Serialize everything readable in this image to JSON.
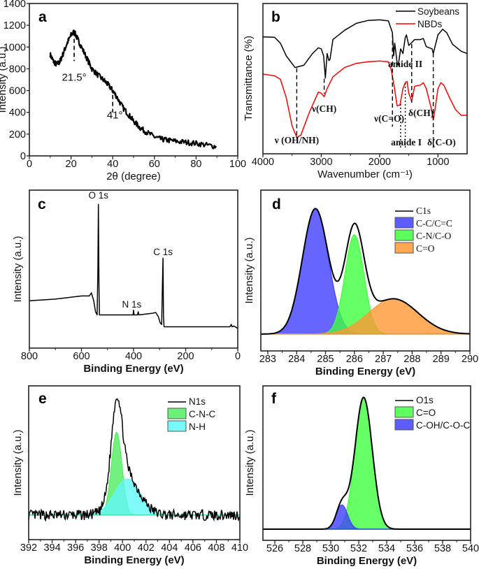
{
  "chart_data": [
    {
      "panel": "a",
      "type": "line",
      "xlabel": "2θ (degree)",
      "ylabel": "Intensity (a.u.)",
      "xlim": [
        0,
        100
      ],
      "ylim": [
        0,
        1400
      ],
      "xticks": [
        "0",
        "20",
        "40",
        "60",
        "80",
        "100"
      ],
      "yticks": [
        "0",
        "200",
        "400",
        "600",
        "800",
        "1000",
        "1200",
        "1400"
      ],
      "series": [
        {
          "color": "#000000",
          "x": [
            10,
            11.5,
            13,
            14.5,
            16,
            18,
            20,
            21.5,
            23,
            25,
            28,
            30,
            33,
            36,
            38,
            40,
            42,
            45,
            48,
            50,
            53,
            56,
            60,
            63,
            66,
            70,
            75,
            80,
            85,
            90
          ],
          "y": [
            930,
            870,
            840,
            860,
            930,
            1030,
            1110,
            1140,
            1080,
            1000,
            880,
            800,
            740,
            690,
            650,
            600,
            540,
            440,
            370,
            320,
            260,
            220,
            175,
            155,
            145,
            135,
            125,
            115,
            100,
            85
          ]
        }
      ],
      "annotations": [
        {
          "text": "21.5°",
          "x": 21.5
        },
        {
          "text": "41°",
          "x": 41
        }
      ]
    },
    {
      "panel": "b",
      "type": "line",
      "xlabel": "Wavenumber (cm⁻¹)",
      "ylabel": "Transmittance (%)",
      "xlim": [
        4000,
        500
      ],
      "ylim": [
        0,
        100
      ],
      "xticks": [
        "4000",
        "3000",
        "2000",
        "1000"
      ],
      "legend": "top-right",
      "series": [
        {
          "name": "Soybeans",
          "color": "#000000",
          "x": [
            4000,
            3800,
            3700,
            3600,
            3450,
            3300,
            3150,
            3050,
            3000,
            2960,
            2930,
            2900,
            2870,
            2850,
            2800,
            2600,
            2400,
            2200,
            2000,
            1850,
            1780,
            1760,
            1740,
            1700,
            1680,
            1640,
            1600,
            1560,
            1540,
            1500,
            1460,
            1400,
            1300,
            1250,
            1200,
            1100,
            1080,
            1000,
            920,
            850,
            750,
            600,
            500
          ],
          "y": [
            77.8,
            77.5,
            73.6,
            65.1,
            57.4,
            58.9,
            66.7,
            70.5,
            69.8,
            65.1,
            50.4,
            66.7,
            62.0,
            62.8,
            76.0,
            82.2,
            86.8,
            88.7,
            89.1,
            88.4,
            80.6,
            65.1,
            73.6,
            60.5,
            58.9,
            69.8,
            66.7,
            77.5,
            79.1,
            72.1,
            73.6,
            76.0,
            76.0,
            76.7,
            71.3,
            69.8,
            66.7,
            79.1,
            82.9,
            80.6,
            72.9,
            68.2,
            66.7
          ]
        },
        {
          "name": "NBDs",
          "color": "#ff0000",
          "x": [
            4000,
            3800,
            3700,
            3600,
            3500,
            3420,
            3350,
            3200,
            3050,
            3000,
            2950,
            2900,
            2800,
            2600,
            2400,
            2200,
            2000,
            1850,
            1800,
            1750,
            1700,
            1650,
            1600,
            1560,
            1530,
            1500,
            1450,
            1400,
            1300,
            1250,
            1200,
            1120,
            1080,
            1050,
            1000,
            950,
            900,
            800,
            700,
            600,
            500
          ],
          "y": [
            53.0,
            51.9,
            49.6,
            37.2,
            18.6,
            10.9,
            12.4,
            27.9,
            41.1,
            40.3,
            38.0,
            43.4,
            51.2,
            57.4,
            60.2,
            61.2,
            61.7,
            61.2,
            55.8,
            45.0,
            31.8,
            32.6,
            43.4,
            47.3,
            48.1,
            40.3,
            34.9,
            45.0,
            45.7,
            47.3,
            43.4,
            31.0,
            22.5,
            29.5,
            43.4,
            47.3,
            45.7,
            37.2,
            29.5,
            25.6,
            25.6
          ]
        }
      ],
      "annotations": [
        {
          "text": "ν (OH/NH)",
          "x": 3420
        },
        {
          "text": "ν(CH)",
          "x": 2950
        },
        {
          "text": "ν(C=O)",
          "x": 1780
        },
        {
          "text": "amide II",
          "x": 1600
        },
        {
          "text": "δ(CH)",
          "x": 1450
        },
        {
          "text": "amide I",
          "x": 1600
        },
        {
          "text": "δ(C-O)",
          "x": 1080
        }
      ]
    },
    {
      "panel": "c",
      "type": "line",
      "xlabel": "Binding Energy (eV)",
      "ylabel": "Intensity (a.u.)",
      "xlim": [
        800,
        0
      ],
      "ylim": [
        0,
        1
      ],
      "xticks": [
        "800",
        "600",
        "400",
        "200",
        "0"
      ],
      "series": [
        {
          "color": "#000000",
          "x": [
            800,
            700,
            600,
            570,
            562,
            553,
            546,
            540,
            537,
            535,
            533,
            531,
            525,
            450,
            402,
            400,
            398,
            385,
            382,
            380,
            330,
            315,
            305,
            298,
            292,
            289,
            287,
            285,
            283,
            250,
            150,
            30,
            25,
            22,
            15,
            0
          ],
          "y": [
            0.3,
            0.31,
            0.33,
            0.33,
            0.35,
            0.3,
            0.23,
            0.21,
            0.5,
            0.91,
            0.4,
            0.21,
            0.21,
            0.21,
            0.21,
            0.24,
            0.21,
            0.21,
            0.23,
            0.21,
            0.22,
            0.225,
            0.2,
            0.16,
            0.15,
            0.4,
            0.57,
            0.2,
            0.135,
            0.135,
            0.135,
            0.135,
            0.15,
            0.135,
            0.14,
            0.125
          ]
        }
      ],
      "annotations": [
        {
          "text": "O 1s",
          "x": 535
        },
        {
          "text": "N 1s",
          "x": 400
        },
        {
          "text": "C 1s",
          "x": 287
        }
      ]
    },
    {
      "panel": "d",
      "type": "area",
      "xlabel": "Binding Energy (eV)",
      "ylabel": "Intensity (a.u.)",
      "xlim": [
        282.76,
        290
      ],
      "ylim": [
        -0.117,
        1
      ],
      "xticks": [
        "283",
        "284",
        "285",
        "286",
        "287",
        "288",
        "289",
        "290"
      ],
      "legend": "top-right",
      "envelope": {
        "name": "C1s",
        "color": "#000000"
      },
      "components": [
        {
          "name": "C-C/C=C",
          "center": 284.65,
          "height": 0.87,
          "sigma": 0.45,
          "color": "#4040ff"
        },
        {
          "name": "C-N/C-O",
          "center": 286.0,
          "height": 0.69,
          "sigma": 0.33,
          "color": "#40ff40"
        },
        {
          "name": "C=O",
          "center": 287.35,
          "height": 0.245,
          "sigma": 0.85,
          "color": "#ff9933"
        }
      ]
    },
    {
      "panel": "e",
      "type": "area",
      "xlabel": "Binding Energy (eV)",
      "ylabel": "Intensity (a.u.)",
      "xlim": [
        392,
        410
      ],
      "ylim": [
        -0.19,
        1
      ],
      "xticks": [
        "392",
        "394",
        "396",
        "398",
        "400",
        "402",
        "404",
        "406",
        "408",
        "410"
      ],
      "legend": "top-right",
      "envelope": {
        "name": "N1s",
        "color": "#000000"
      },
      "components": [
        {
          "name": "C-N-C",
          "center": 399.5,
          "height": 0.64,
          "sigma": 0.45,
          "color": "#50ee60"
        },
        {
          "name": "N-H",
          "center": 400.4,
          "height": 0.28,
          "sigma": 1.1,
          "color": "#60f8f8"
        }
      ]
    },
    {
      "panel": "f",
      "type": "area",
      "xlabel": "Binding Energy (eV)",
      "ylabel": "Intensity (a.u.)",
      "xlim": [
        525.15,
        540
      ],
      "ylim": [
        -0.078,
        1
      ],
      "xticks": [
        "526",
        "528",
        "530",
        "532",
        "534",
        "536",
        "538",
        "540"
      ],
      "legend": "top-right",
      "envelope": {
        "name": "O1s",
        "color": "#000000"
      },
      "components": [
        {
          "name": "C=O",
          "center": 532.35,
          "height": 0.92,
          "sigma": 0.62,
          "color": "#40ff40"
        },
        {
          "name": "C-OH/C-O-C",
          "center": 530.8,
          "height": 0.17,
          "sigma": 0.4,
          "color": "#4040ff"
        }
      ]
    }
  ]
}
